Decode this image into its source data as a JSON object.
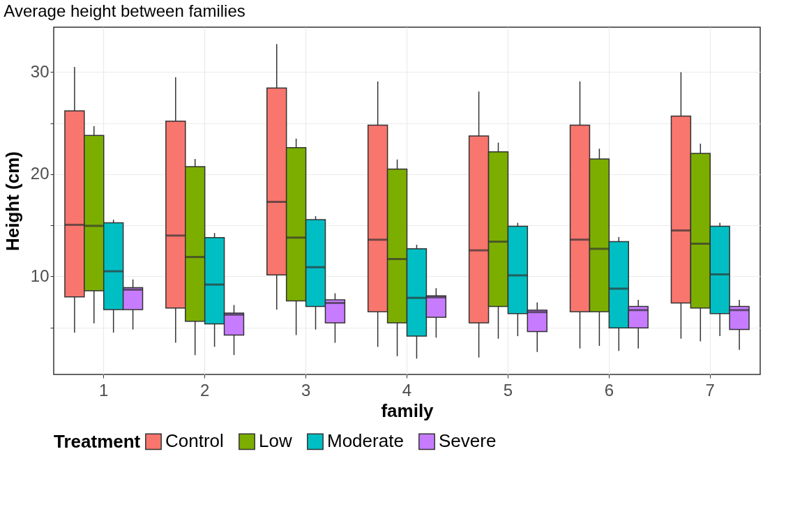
{
  "chart_data": {
    "type": "box",
    "title": "Average height between families",
    "xlabel": "family",
    "ylabel": "Height (cm)",
    "legend_title": "Treatment",
    "legend": "bottom",
    "grid": true,
    "categories": [
      "1",
      "2",
      "3",
      "4",
      "5",
      "6",
      "7"
    ],
    "ylim": [
      0.4,
      34.4
    ],
    "yticks": [
      {
        "value": 5,
        "label": null
      },
      10,
      {
        "value": 15,
        "label": null
      },
      20,
      {
        "value": 25,
        "label": null
      },
      30
    ],
    "series": [
      {
        "name": "Control",
        "color": "#f8766d",
        "boxes": [
          {
            "low": 4.5,
            "q1": 8.0,
            "median": 15.05,
            "q3": 26.2,
            "high": 30.5
          },
          {
            "low": 3.5,
            "q1": 6.9,
            "median": 14.0,
            "q3": 25.2,
            "high": 29.5
          },
          {
            "low": 6.75,
            "q1": 10.15,
            "median": 17.3,
            "q3": 28.45,
            "high": 32.75
          },
          {
            "low": 3.1,
            "q1": 6.55,
            "median": 13.6,
            "q3": 24.8,
            "high": 29.1
          },
          {
            "low": 2.05,
            "q1": 5.45,
            "median": 12.55,
            "q3": 23.75,
            "high": 28.1
          },
          {
            "low": 2.95,
            "q1": 6.55,
            "median": 13.6,
            "q3": 24.8,
            "high": 29.1
          },
          {
            "low": 3.9,
            "q1": 7.4,
            "median": 14.5,
            "q3": 25.7,
            "high": 30.0
          }
        ]
      },
      {
        "name": "Low",
        "color": "#7cae00",
        "boxes": [
          {
            "low": 5.4,
            "q1": 8.6,
            "median": 14.95,
            "q3": 23.8,
            "high": 24.7
          },
          {
            "low": 2.3,
            "q1": 5.6,
            "median": 11.9,
            "q3": 20.75,
            "high": 21.5
          },
          {
            "low": 4.25,
            "q1": 7.6,
            "median": 13.8,
            "q3": 22.6,
            "high": 23.5
          },
          {
            "low": 2.2,
            "q1": 5.45,
            "median": 11.7,
            "q3": 20.5,
            "high": 21.45
          },
          {
            "low": 3.9,
            "q1": 7.05,
            "median": 13.4,
            "q3": 22.2,
            "high": 23.1
          },
          {
            "low": 3.2,
            "q1": 6.55,
            "median": 12.7,
            "q3": 21.5,
            "high": 22.5
          },
          {
            "low": 3.65,
            "q1": 6.9,
            "median": 13.2,
            "q3": 22.05,
            "high": 23.0
          }
        ]
      },
      {
        "name": "Moderate",
        "color": "#00bfc4",
        "boxes": [
          {
            "low": 4.5,
            "q1": 6.75,
            "median": 10.5,
            "q3": 15.25,
            "high": 15.55
          },
          {
            "low": 3.1,
            "q1": 5.35,
            "median": 9.2,
            "q3": 13.8,
            "high": 14.25
          },
          {
            "low": 4.8,
            "q1": 7.05,
            "median": 10.9,
            "q3": 15.55,
            "high": 15.9
          },
          {
            "low": 1.95,
            "q1": 4.15,
            "median": 7.9,
            "q3": 12.7,
            "high": 13.1
          },
          {
            "low": 4.15,
            "q1": 6.35,
            "median": 10.1,
            "q3": 14.9,
            "high": 15.25
          },
          {
            "low": 2.7,
            "q1": 4.95,
            "median": 8.8,
            "q3": 13.4,
            "high": 13.85
          },
          {
            "low": 4.15,
            "q1": 6.35,
            "median": 10.2,
            "q3": 14.9,
            "high": 15.25
          }
        ]
      },
      {
        "name": "Severe",
        "color": "#c77cff",
        "boxes": [
          {
            "low": 4.8,
            "q1": 6.75,
            "median": 8.7,
            "q3": 8.9,
            "high": 9.7
          },
          {
            "low": 2.3,
            "q1": 4.25,
            "median": 6.25,
            "q3": 6.4,
            "high": 7.2
          },
          {
            "low": 3.5,
            "q1": 5.45,
            "median": 7.4,
            "q3": 7.7,
            "high": 8.35
          },
          {
            "low": 4.0,
            "q1": 6.0,
            "median": 7.95,
            "q3": 8.1,
            "high": 8.85
          },
          {
            "low": 2.6,
            "q1": 4.6,
            "median": 6.5,
            "q3": 6.7,
            "high": 7.45
          },
          {
            "low": 2.95,
            "q1": 4.95,
            "median": 6.7,
            "q3": 7.05,
            "high": 7.7
          },
          {
            "low": 2.8,
            "q1": 4.8,
            "median": 6.7,
            "q3": 7.05,
            "high": 7.7
          }
        ]
      }
    ]
  }
}
